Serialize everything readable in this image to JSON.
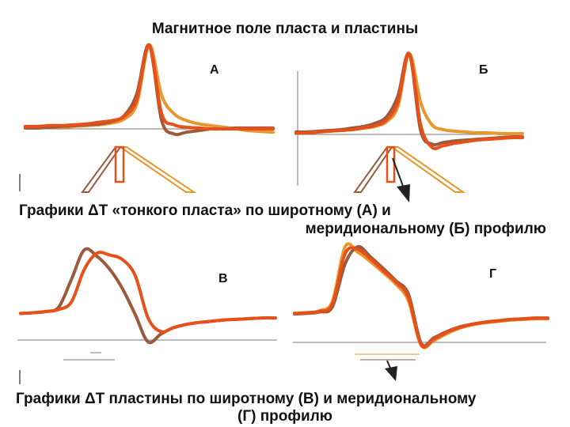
{
  "title": "Магнитное поле пласта и пластины",
  "captions": {
    "top_line1": "Графики ΔТ «тонкого пласта» по широтному (А) и",
    "top_line2": "меридиональному (Б) профилю",
    "bottom_line1": "Графики ΔТ пластины по широтному (В) и меридиональному",
    "bottom_line2": "(Г) профилю"
  },
  "colors": {
    "series": [
      "#e8962e",
      "#9a5a3c",
      "#e8501a"
    ],
    "dike_outline": [
      "#9a5a3c",
      "#e8962e",
      "#e8501a"
    ],
    "magnetization_arrow": "#222222",
    "axis": "#555555"
  },
  "chart_data": [
    {
      "id": "A",
      "label": "А",
      "type": "line",
      "x": [
        -10,
        -9,
        -8,
        -7,
        -6,
        -5,
        -4,
        -3,
        -2,
        -1,
        0,
        1,
        2,
        3,
        4,
        5,
        6,
        7,
        8,
        9,
        10
      ],
      "ylim": [
        -0.15,
        1.05
      ],
      "series": [
        {
          "values": [
            0.01,
            0.01,
            0.02,
            0.02,
            0.03,
            0.04,
            0.05,
            0.07,
            0.12,
            0.3,
            1.0,
            0.4,
            0.18,
            0.1,
            0.06,
            0.04,
            0.02,
            0.0,
            -0.02,
            -0.03,
            -0.04
          ]
        },
        {
          "values": [
            0.01,
            0.01,
            0.02,
            0.03,
            0.04,
            0.05,
            0.06,
            0.09,
            0.16,
            0.42,
            1.0,
            0.1,
            -0.06,
            -0.04,
            -0.02,
            0.0,
            0.0,
            0.01,
            0.01,
            0.01,
            0.01
          ]
        },
        {
          "values": [
            0.03,
            0.03,
            0.04,
            0.04,
            0.05,
            0.06,
            0.08,
            0.1,
            0.15,
            0.35,
            1.0,
            0.18,
            0.05,
            0.02,
            0.01,
            0.0,
            0.0,
            0.0,
            0.0,
            0.0,
            0.0
          ]
        }
      ]
    },
    {
      "id": "B",
      "label": "Б",
      "type": "line",
      "x": [
        -10,
        -9,
        -8,
        -7,
        -6,
        -5,
        -4,
        -3,
        -2,
        -1,
        0,
        1,
        2,
        3,
        4,
        5,
        6,
        7,
        8,
        9,
        10
      ],
      "ylim": [
        -0.25,
        1.05
      ],
      "series": [
        {
          "values": [
            0.02,
            0.02,
            0.03,
            0.04,
            0.05,
            0.06,
            0.08,
            0.1,
            0.16,
            0.35,
            1.0,
            0.4,
            0.12,
            0.06,
            0.04,
            0.03,
            0.02,
            0.02,
            0.01,
            0.01,
            0.01
          ]
        },
        {
          "values": [
            0.03,
            0.03,
            0.04,
            0.05,
            0.06,
            0.08,
            0.1,
            0.14,
            0.22,
            0.48,
            1.0,
            0.05,
            -0.12,
            -0.1,
            -0.08,
            -0.07,
            -0.06,
            -0.05,
            -0.04,
            -0.03,
            -0.03
          ]
        },
        {
          "values": [
            0.02,
            0.02,
            0.03,
            0.04,
            0.05,
            0.06,
            0.08,
            0.11,
            0.18,
            0.4,
            1.0,
            0.12,
            -0.16,
            -0.14,
            -0.11,
            -0.09,
            -0.07,
            -0.06,
            -0.05,
            -0.04,
            -0.04
          ]
        }
      ]
    },
    {
      "id": "V",
      "label": "В",
      "type": "line",
      "x": [
        -10,
        -9,
        -8,
        -7,
        -6,
        -5,
        -4,
        -3,
        -2,
        -1,
        0,
        1,
        2,
        3,
        4,
        5,
        6,
        7,
        8,
        9,
        10
      ],
      "ylim": [
        -0.45,
        1.05
      ],
      "series": [
        {
          "values": [
            0.02,
            0.03,
            0.05,
            0.12,
            0.55,
            1.0,
            0.9,
            0.7,
            0.4,
            0.0,
            -0.42,
            -0.3,
            -0.2,
            -0.15,
            -0.12,
            -0.1,
            -0.08,
            -0.07,
            -0.06,
            -0.05,
            -0.05
          ]
        },
        {
          "values": [
            0.02,
            0.03,
            0.05,
            0.08,
            0.2,
            0.7,
            0.95,
            0.92,
            0.85,
            0.6,
            -0.05,
            -0.26,
            -0.2,
            -0.15,
            -0.12,
            -0.1,
            -0.08,
            -0.07,
            -0.06,
            -0.05,
            -0.05
          ]
        }
      ]
    },
    {
      "id": "G",
      "label": "Г",
      "type": "line",
      "x": [
        -10,
        -9,
        -8,
        -7,
        -6,
        -5,
        -4,
        -3,
        -2,
        -1,
        0,
        1,
        2,
        3,
        4,
        5,
        6,
        7,
        8,
        9,
        10
      ],
      "ylim": [
        -0.5,
        1.05
      ],
      "series": [
        {
          "values": [
            0.02,
            0.03,
            0.06,
            0.2,
            1.0,
            0.92,
            0.78,
            0.62,
            0.45,
            0.2,
            -0.45,
            -0.38,
            -0.28,
            -0.2,
            -0.15,
            -0.12,
            -0.1,
            -0.08,
            -0.07,
            -0.06,
            -0.06
          ]
        },
        {
          "values": [
            0.01,
            0.02,
            0.04,
            0.12,
            0.75,
            1.0,
            0.85,
            0.68,
            0.5,
            0.3,
            -0.42,
            -0.34,
            -0.25,
            -0.18,
            -0.14,
            -0.11,
            -0.09,
            -0.07,
            -0.06,
            -0.05,
            -0.05
          ]
        },
        {
          "values": [
            0.02,
            0.03,
            0.05,
            0.16,
            0.9,
            0.96,
            0.82,
            0.65,
            0.48,
            0.25,
            -0.44,
            -0.36,
            -0.26,
            -0.19,
            -0.14,
            -0.11,
            -0.09,
            -0.07,
            -0.06,
            -0.05,
            -0.05
          ]
        }
      ]
    }
  ]
}
